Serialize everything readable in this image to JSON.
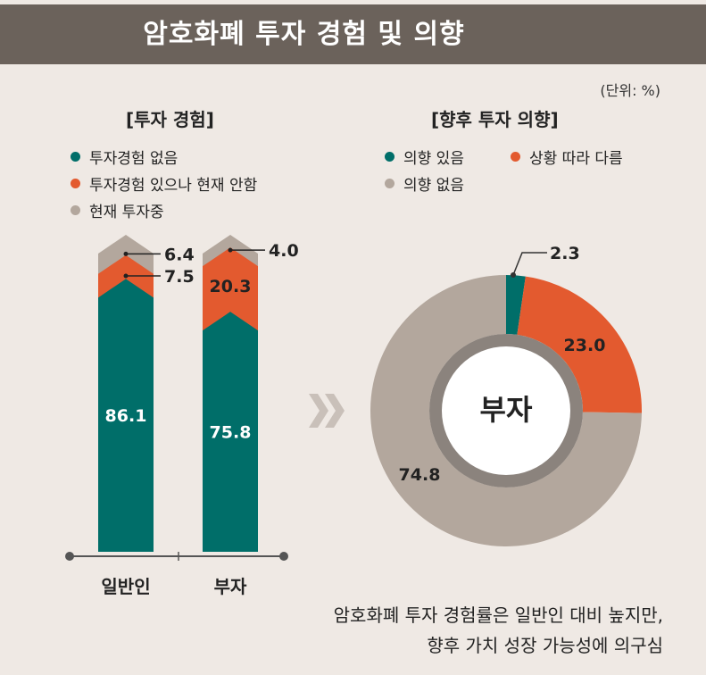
{
  "header": {
    "title": "암호화폐 투자 경험 및 의향"
  },
  "unit": "(단위: %)",
  "colors": {
    "teal": "#006e69",
    "orange": "#e35a2f",
    "gray": "#b3a79d",
    "header_bg": "#6b625b",
    "bg": "#efe9e4",
    "ring": "#8b837d"
  },
  "chart_data": [
    {
      "type": "bar",
      "stacked": true,
      "title": "[투자 경험]",
      "categories": [
        "일반인",
        "부자"
      ],
      "series": [
        {
          "name": "투자경험 없음",
          "color": "#006e69",
          "values": [
            86.1,
            75.8
          ]
        },
        {
          "name": "투자경험 있으나 현재 안함",
          "color": "#e35a2f",
          "values": [
            7.5,
            20.3
          ]
        },
        {
          "name": "현재 투자중",
          "color": "#b3a79d",
          "values": [
            6.4,
            4.0
          ]
        }
      ],
      "data_labels": [
        [
          "86.1",
          "7.5",
          "6.4"
        ],
        [
          "75.8",
          "20.3",
          "4.0"
        ]
      ]
    },
    {
      "type": "pie",
      "donut": true,
      "title": "[향후 투자 의향]",
      "center_label": "부자",
      "slices": [
        {
          "name": "의향 있음",
          "value": 2.3,
          "label": "2.3",
          "color": "#006e69"
        },
        {
          "name": "상황 따라 다름",
          "value": 23.0,
          "label": "23.0",
          "color": "#e35a2f"
        },
        {
          "name": "의향 없음",
          "value": 74.8,
          "label": "74.8",
          "color": "#b3a79d"
        }
      ]
    }
  ],
  "caption": {
    "line1": "암호화폐 투자 경험률은 일반인 대비 높지만,",
    "line2": "향후 가치 성장 가능성에 의구심"
  }
}
